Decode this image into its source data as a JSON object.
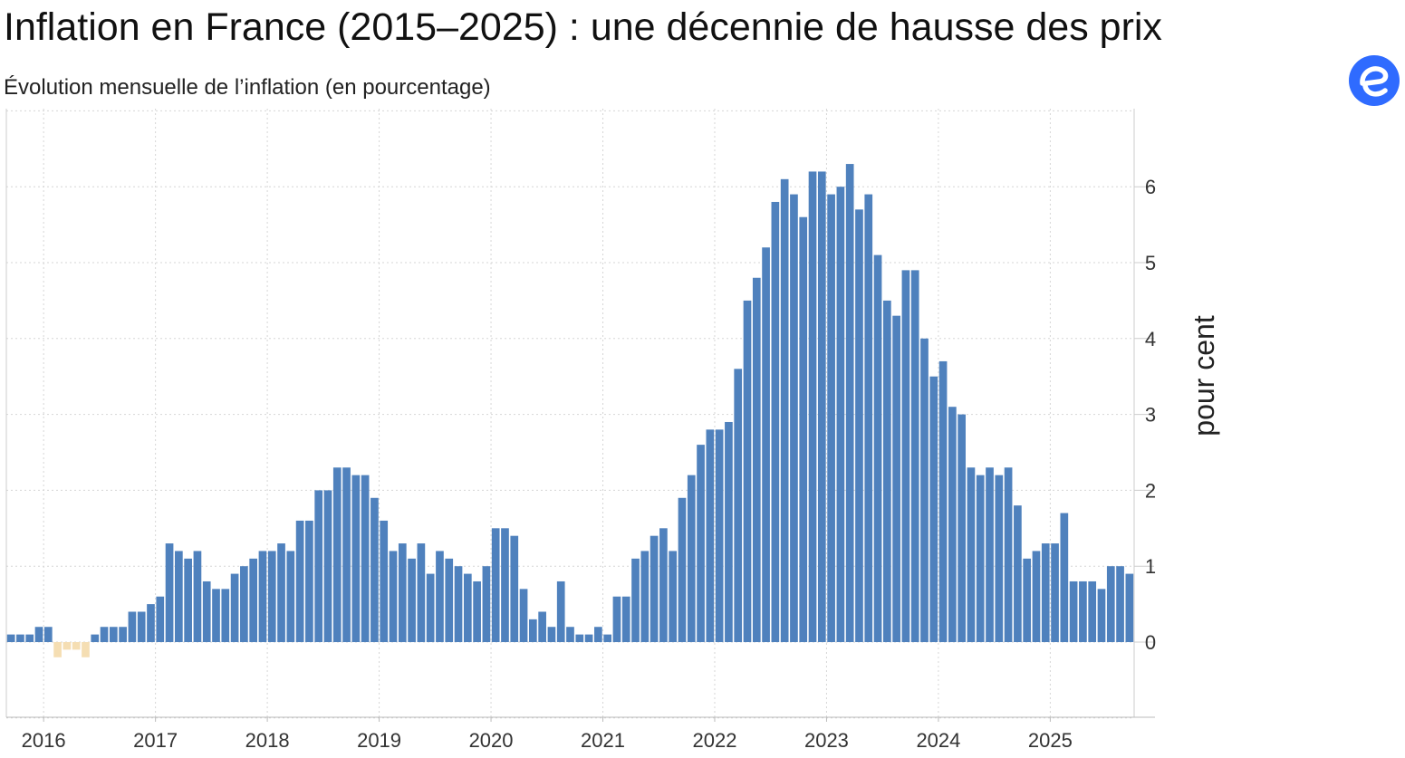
{
  "header": {
    "title": "Inflation en France (2015–2025) : une décennie de hausse des prix",
    "subtitle": "Évolution mensuelle de l’inflation (en pourcentage)"
  },
  "logo": {
    "icon": "e-logo-icon",
    "color": "#2f6bff"
  },
  "chart_data": {
    "type": "bar",
    "title": "Inflation en France (2015–2025) : une décennie de hausse des prix",
    "subtitle": "Évolution mensuelle de l’inflation (en pourcentage)",
    "xlabel": "",
    "ylabel": "pour cent",
    "x_tick_labels": [
      "2016",
      "2017",
      "2018",
      "2019",
      "2020",
      "2021",
      "2022",
      "2023",
      "2024",
      "2025"
    ],
    "y_tick_labels": [
      "0",
      "1",
      "2",
      "3",
      "4",
      "5",
      "6"
    ],
    "ylim": [
      -1,
      7
    ],
    "grid": true,
    "colors": {
      "positive": "#4f81bd",
      "negative": "#f5deb3"
    },
    "start": "2015-09",
    "end": "2025-09",
    "values": [
      0.1,
      0.1,
      0.1,
      0.2,
      0.2,
      -0.2,
      -0.1,
      -0.1,
      -0.2,
      0.1,
      0.2,
      0.2,
      0.2,
      0.4,
      0.4,
      0.5,
      0.6,
      1.3,
      1.2,
      1.1,
      1.2,
      0.8,
      0.7,
      0.7,
      0.9,
      1.0,
      1.1,
      1.2,
      1.2,
      1.3,
      1.2,
      1.6,
      1.6,
      2.0,
      2.0,
      2.3,
      2.3,
      2.2,
      2.2,
      1.9,
      1.6,
      1.2,
      1.3,
      1.1,
      1.3,
      0.9,
      1.2,
      1.1,
      1.0,
      0.9,
      0.8,
      1.0,
      1.5,
      1.5,
      1.4,
      0.7,
      0.3,
      0.4,
      0.2,
      0.8,
      0.2,
      0.1,
      0.1,
      0.2,
      0.1,
      0.6,
      0.6,
      1.1,
      1.2,
      1.4,
      1.5,
      1.2,
      1.9,
      2.2,
      2.6,
      2.8,
      2.8,
      2.9,
      3.6,
      4.5,
      4.8,
      5.2,
      5.8,
      6.1,
      5.9,
      5.6,
      6.2,
      6.2,
      5.9,
      6.0,
      6.3,
      5.7,
      5.9,
      5.1,
      4.5,
      4.3,
      4.9,
      4.9,
      4.0,
      3.5,
      3.7,
      3.1,
      3.0,
      2.3,
      2.2,
      2.3,
      2.2,
      2.3,
      1.8,
      1.1,
      1.2,
      1.3,
      1.3,
      1.7,
      0.8,
      0.8,
      0.8,
      0.7,
      1.0,
      1.0,
      0.9
    ]
  }
}
